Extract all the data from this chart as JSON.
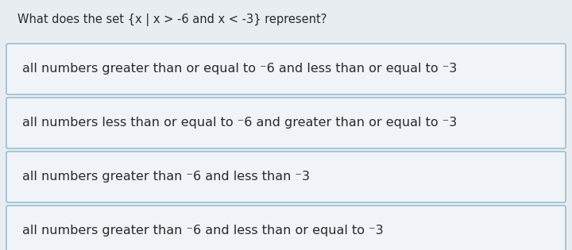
{
  "question": "What does the set {x | x > −6 and x < −3} represent?",
  "question_plain": "What does the set {x | x > -6 and x < -3} represent?",
  "options": [
    "all numbers greater than or equal to ⁻6 and less than or equal to ⁻3",
    "all numbers less than or equal to ⁻6 and greater than or equal to ⁻3",
    "all numbers greater than ⁻6 and less than ⁻3",
    "all numbers greater than ⁻6 and less than or equal to ⁻3"
  ],
  "bg_color": "#e8edf2",
  "box_bg_color": "#f0f4f8",
  "box_border_color": "#8ab4cc",
  "question_color": "#2a2a2a",
  "option_color": "#2a2a2a",
  "question_fontsize": 10.5,
  "option_fontsize": 11.5,
  "fig_width": 7.2,
  "fig_height": 3.15,
  "dpi": 100
}
